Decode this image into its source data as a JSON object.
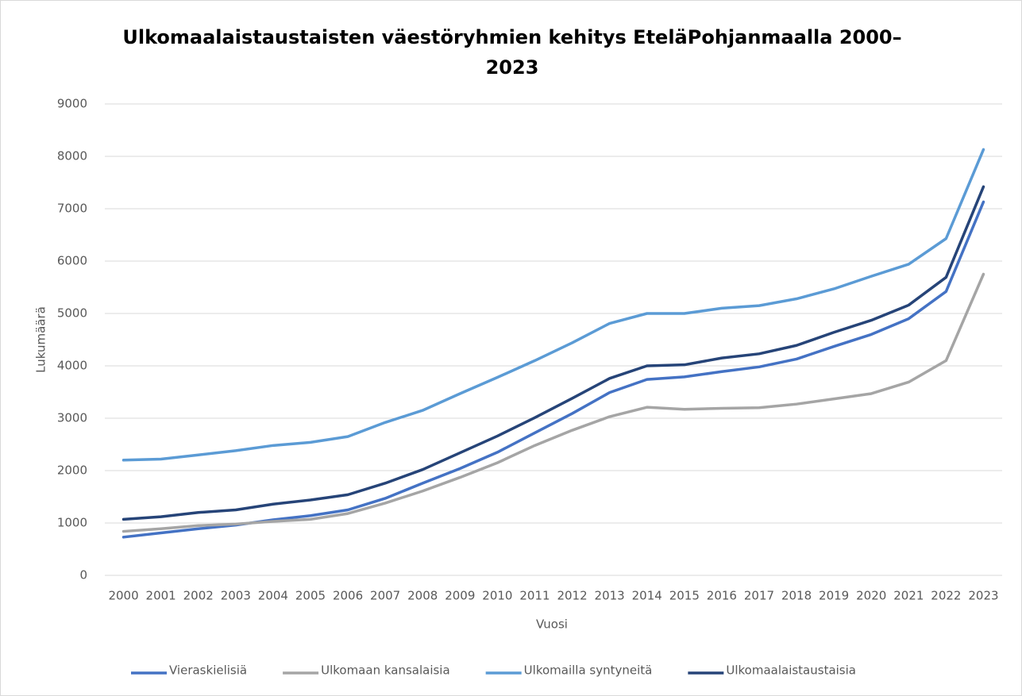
{
  "chart_data": {
    "type": "line",
    "title": "Ulkomaalaistaustaisten väestöryhmien kehitys EteläPohjanmaalla 2000–2023",
    "x_label": "Vuosi",
    "y_label": "Lukumäärä",
    "categories": [
      "2000",
      "2001",
      "2002",
      "2003",
      "2004",
      "2005",
      "2006",
      "2007",
      "2008",
      "2009",
      "2010",
      "2011",
      "2012",
      "2013",
      "2014",
      "2015",
      "2016",
      "2017",
      "2018",
      "2019",
      "2020",
      "2021",
      "2022",
      "2023"
    ],
    "series": [
      {
        "name": "Vieraskielisiä",
        "color": "#4472c4",
        "values": [
          730,
          810,
          890,
          960,
          1060,
          1140,
          1250,
          1470,
          1760,
          2040,
          2350,
          2720,
          3090,
          3490,
          3740,
          3790,
          3890,
          3980,
          4130,
          4370,
          4600,
          4900,
          5420,
          7130
        ]
      },
      {
        "name": "Ulkomaan kansalaisia",
        "color": "#a5a5a5",
        "values": [
          840,
          890,
          950,
          980,
          1030,
          1070,
          1180,
          1380,
          1610,
          1870,
          2150,
          2480,
          2770,
          3030,
          3210,
          3170,
          3190,
          3200,
          3270,
          3370,
          3470,
          3690,
          4100,
          5750
        ]
      },
      {
        "name": "Ulkomailla syntyneitä",
        "color": "#5b9bd5",
        "values": [
          2200,
          2220,
          2300,
          2380,
          2480,
          2540,
          2650,
          2920,
          3150,
          3470,
          3780,
          4100,
          4440,
          4810,
          5000,
          5000,
          5100,
          5150,
          5280,
          5470,
          5710,
          5940,
          6430,
          8130
        ]
      },
      {
        "name": "Ulkomaalaistaustaisia",
        "color": "#264478",
        "values": [
          1070,
          1120,
          1200,
          1250,
          1360,
          1440,
          1540,
          1760,
          2020,
          2340,
          2660,
          3010,
          3380,
          3760,
          4000,
          4020,
          4150,
          4230,
          4390,
          4640,
          4870,
          5160,
          5690,
          7420
        ]
      }
    ],
    "ylim": [
      0,
      9000
    ],
    "yticks": [
      0,
      1000,
      2000,
      3000,
      4000,
      5000,
      6000,
      7000,
      8000,
      9000
    ],
    "grid": true,
    "legend": "bottom"
  }
}
